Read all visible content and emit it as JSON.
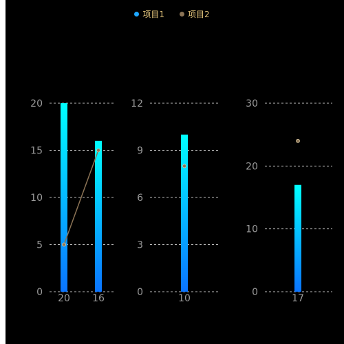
{
  "legend": {
    "items": [
      "项目1",
      "项目2"
    ]
  },
  "colors": {
    "bar_top": "#00ffff",
    "bar_bottom": "#0a74ff",
    "line": "#8b7355",
    "grid": "#bbbbbb",
    "text": "#9a9a9a",
    "legend_item1_dot": "#1ea7ff",
    "legend_item2_dot": "#8b7355"
  },
  "chart_data": [
    {
      "type": "bar",
      "categories": [
        "20",
        "16"
      ],
      "series": [
        {
          "name": "项目1",
          "type": "bar",
          "values": [
            20,
            16
          ]
        },
        {
          "name": "项目2",
          "type": "line",
          "values": [
            5,
            15
          ]
        }
      ],
      "ylim": [
        0,
        20
      ],
      "yticks": [
        0,
        5,
        10,
        15,
        20
      ]
    },
    {
      "type": "bar",
      "categories": [
        "10"
      ],
      "series": [
        {
          "name": "项目1",
          "type": "bar",
          "values": [
            10
          ]
        },
        {
          "name": "项目2",
          "type": "line",
          "values": [
            8
          ]
        }
      ],
      "ylim": [
        0,
        12
      ],
      "yticks": [
        0,
        3,
        6,
        9,
        12
      ]
    },
    {
      "type": "bar",
      "categories": [
        "17"
      ],
      "series": [
        {
          "name": "项目1",
          "type": "bar",
          "values": [
            17
          ]
        },
        {
          "name": "项目2",
          "type": "line",
          "values": [
            24
          ]
        }
      ],
      "ylim": [
        0,
        30
      ],
      "yticks": [
        0,
        10,
        20,
        30
      ]
    }
  ]
}
